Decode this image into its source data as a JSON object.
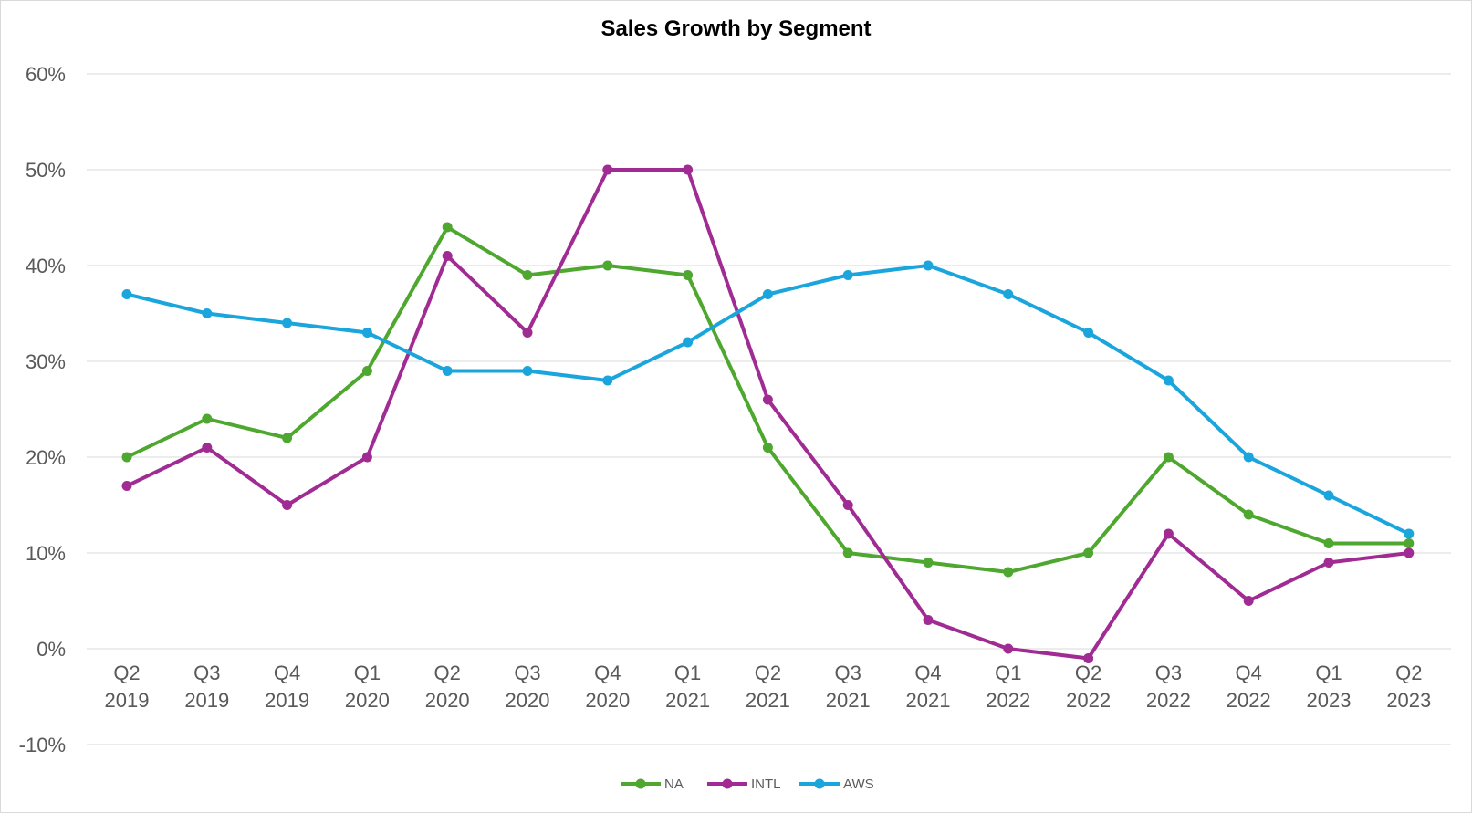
{
  "chart_data": {
    "type": "line",
    "title": "Sales Growth by Segment",
    "xlabel": "",
    "ylabel": "",
    "categories": [
      [
        "Q2",
        "2019"
      ],
      [
        "Q3",
        "2019"
      ],
      [
        "Q4",
        "2019"
      ],
      [
        "Q1",
        "2020"
      ],
      [
        "Q2",
        "2020"
      ],
      [
        "Q3",
        "2020"
      ],
      [
        "Q4",
        "2020"
      ],
      [
        "Q1",
        "2021"
      ],
      [
        "Q2",
        "2021"
      ],
      [
        "Q3",
        "2021"
      ],
      [
        "Q4",
        "2021"
      ],
      [
        "Q1",
        "2022"
      ],
      [
        "Q2",
        "2022"
      ],
      [
        "Q3",
        "2022"
      ],
      [
        "Q4",
        "2022"
      ],
      [
        "Q1",
        "2023"
      ],
      [
        "Q2",
        "2023"
      ]
    ],
    "y_ticks": [
      -10,
      0,
      10,
      20,
      30,
      40,
      50,
      60
    ],
    "y_tick_labels": [
      "-10%",
      "0%",
      "10%",
      "20%",
      "30%",
      "40%",
      "50%",
      "60%"
    ],
    "ylim": [
      -10,
      60
    ],
    "grid": true,
    "legend_position": "bottom",
    "series": [
      {
        "name": "NA",
        "color": "#4ea72e",
        "values": [
          20,
          24,
          22,
          29,
          44,
          39,
          40,
          39,
          21,
          10,
          9,
          8,
          10,
          20,
          14,
          11,
          11
        ]
      },
      {
        "name": "INTL",
        "color": "#a02b93",
        "values": [
          17,
          21,
          15,
          20,
          41,
          33,
          50,
          50,
          26,
          15,
          3,
          0,
          -1,
          12,
          5,
          9,
          10
        ]
      },
      {
        "name": "AWS",
        "color": "#1aa5dc",
        "values": [
          37,
          35,
          34,
          33,
          29,
          29,
          28,
          32,
          37,
          39,
          40,
          37,
          33,
          28,
          20,
          16,
          12
        ]
      }
    ]
  }
}
